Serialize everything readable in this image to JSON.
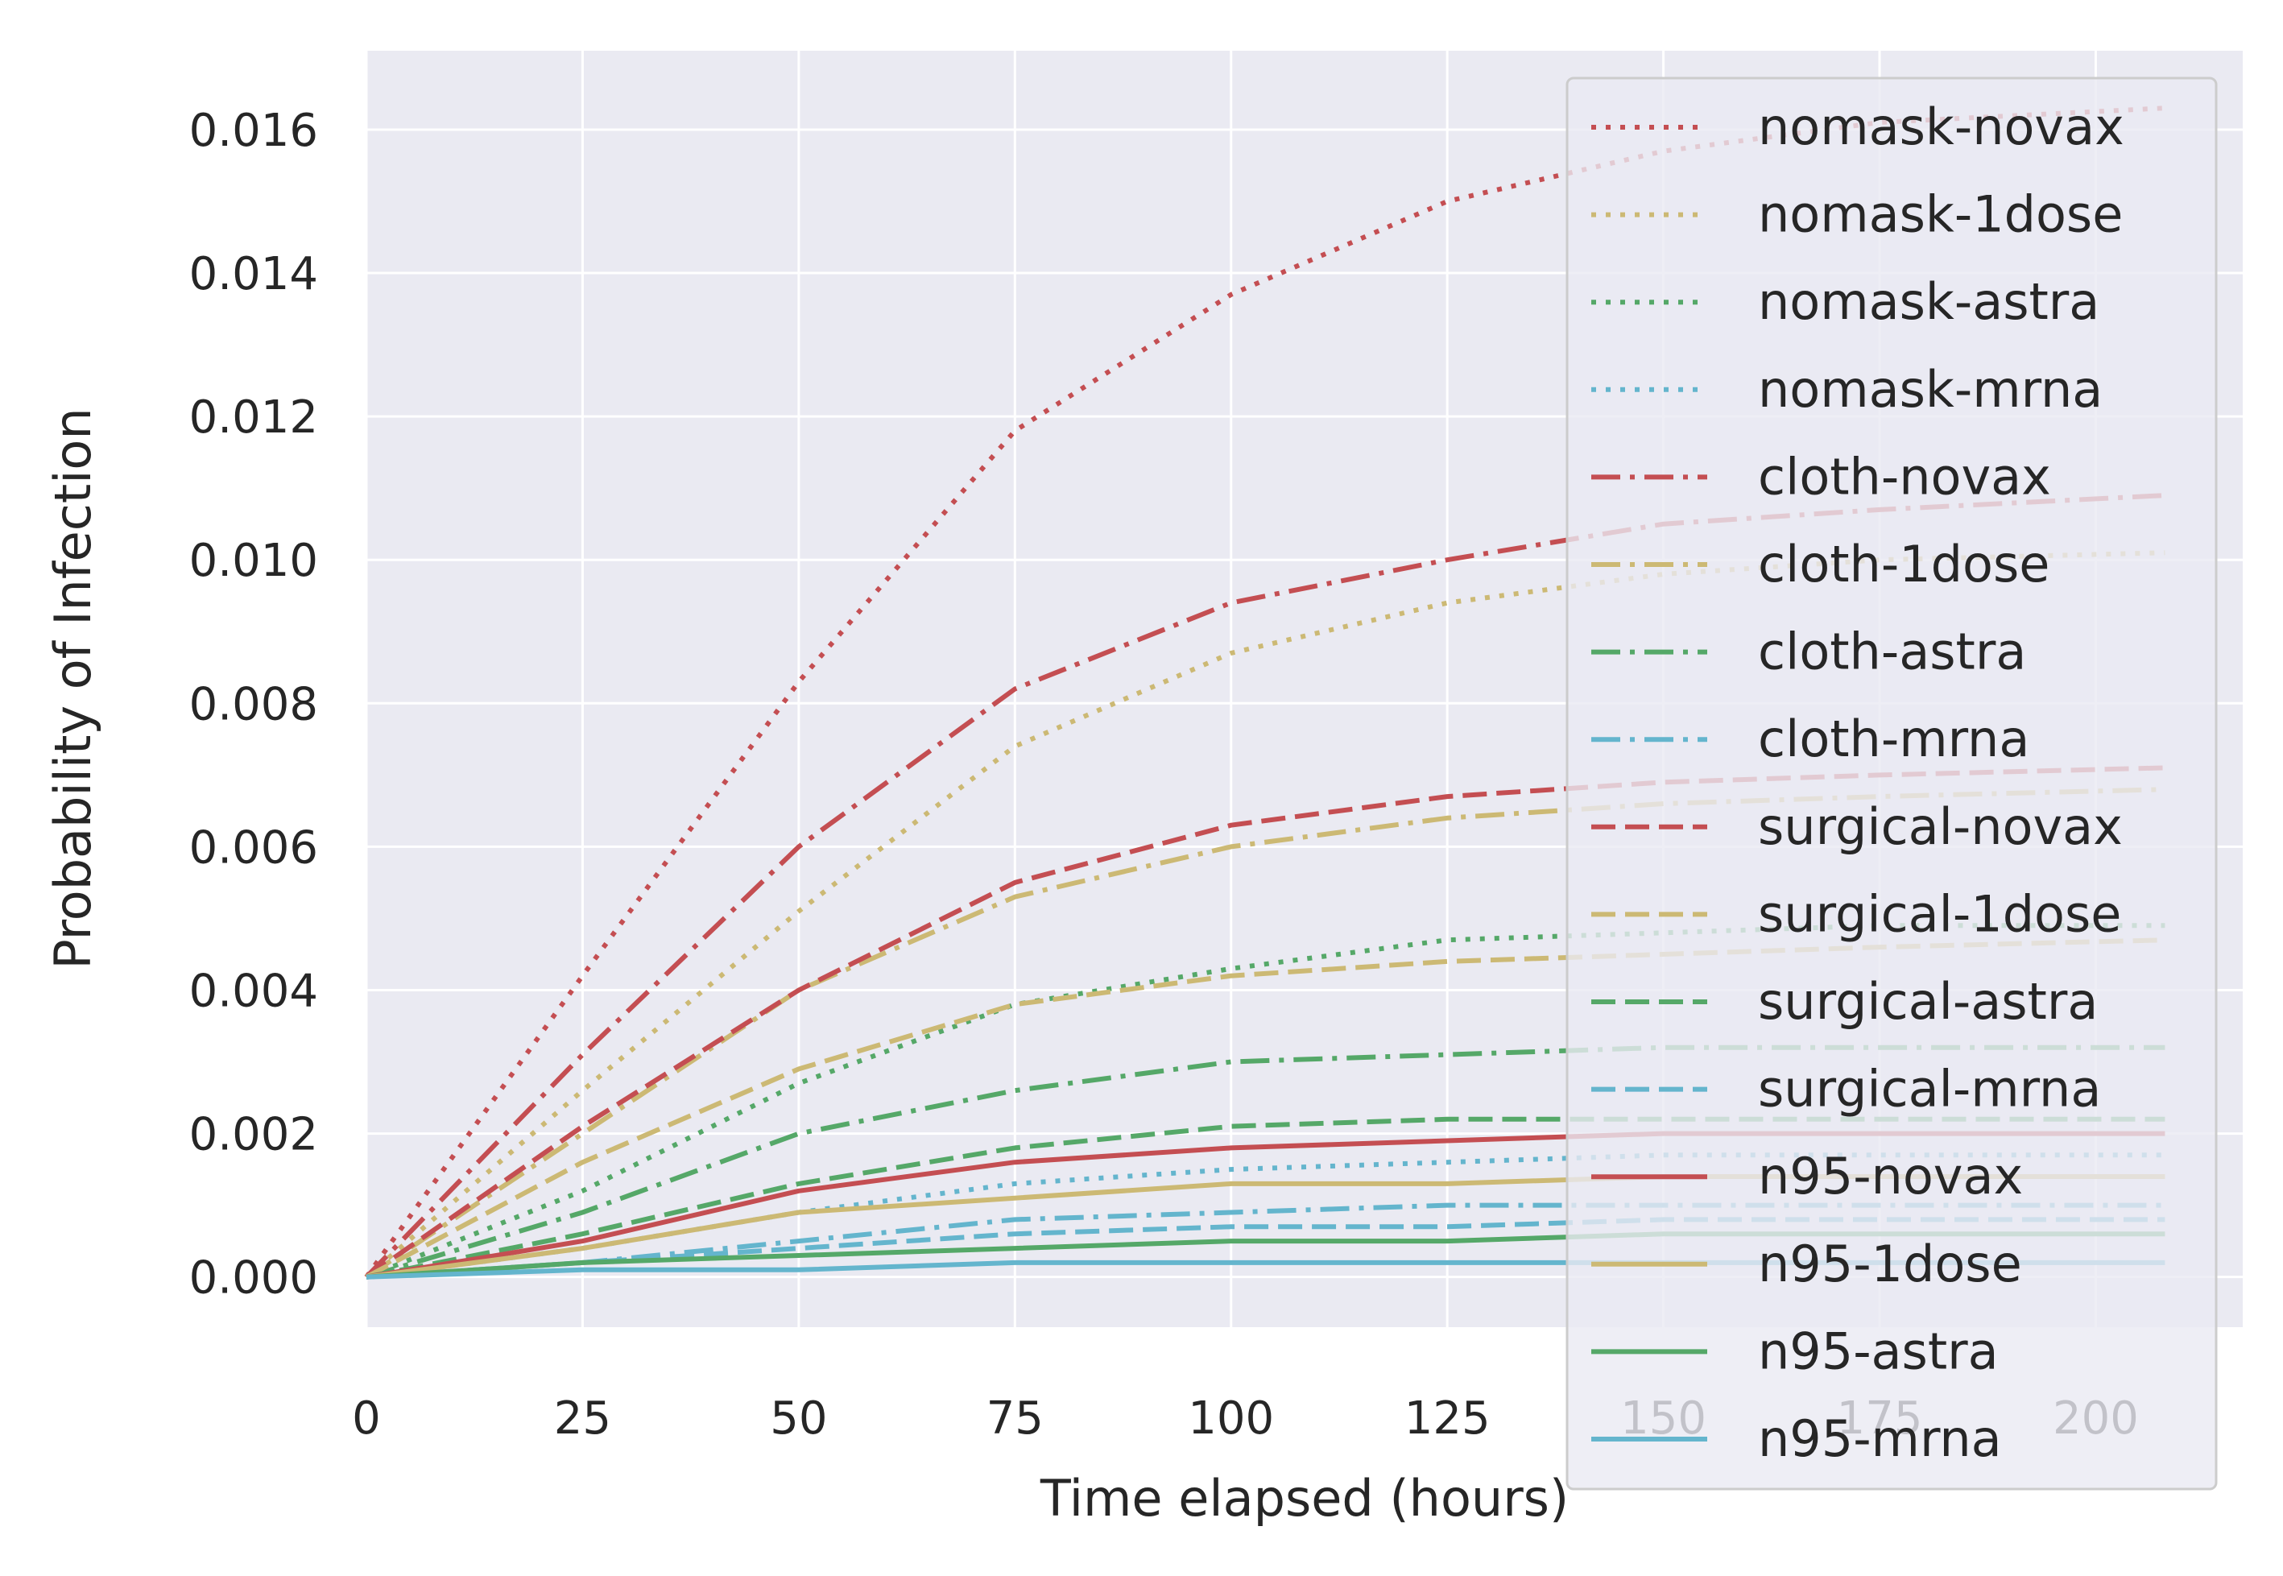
{
  "chart_data": {
    "type": "line",
    "xlabel": "Time elapsed (hours)",
    "ylabel": "Probability of Infection",
    "xlim": [
      0,
      217
    ],
    "ylim": [
      -0.0007,
      0.0171
    ],
    "xticks": [
      0,
      25,
      50,
      75,
      100,
      125,
      150,
      175,
      200
    ],
    "yticks": [
      0.0,
      0.002,
      0.004,
      0.006,
      0.008,
      0.01,
      0.012,
      0.014,
      0.016
    ],
    "xtick_labels": [
      "0",
      "25",
      "50",
      "75",
      "100",
      "125",
      "150",
      "175",
      "200"
    ],
    "ytick_labels": [
      "0.000",
      "0.002",
      "0.004",
      "0.006",
      "0.008",
      "0.010",
      "0.012",
      "0.014",
      "0.016"
    ],
    "grid": true,
    "legend_position": "right",
    "x": [
      0,
      25,
      50,
      75,
      100,
      125,
      150,
      175,
      208
    ],
    "series": [
      {
        "name": "nomask-novax",
        "style": "dotted",
        "color": "#c44e52",
        "values": [
          0,
          0.0042,
          0.0083,
          0.0118,
          0.0137,
          0.015,
          0.0157,
          0.0161,
          0.0163
        ]
      },
      {
        "name": "nomask-1dose",
        "style": "dotted",
        "color": "#ccb974",
        "values": [
          0,
          0.0026,
          0.0051,
          0.0074,
          0.0087,
          0.0094,
          0.0098,
          0.01,
          0.0101
        ]
      },
      {
        "name": "nomask-astra",
        "style": "dotted",
        "color": "#55a868",
        "values": [
          0,
          0.0012,
          0.0027,
          0.0038,
          0.0043,
          0.0047,
          0.0048,
          0.0049,
          0.0049
        ]
      },
      {
        "name": "nomask-mrna",
        "style": "dotted",
        "color": "#64b5cd",
        "values": [
          0,
          0.0004,
          0.0009,
          0.0013,
          0.0015,
          0.0016,
          0.0017,
          0.0017,
          0.0017
        ]
      },
      {
        "name": "cloth-novax",
        "style": "dashdot",
        "color": "#c44e52",
        "values": [
          0,
          0.0031,
          0.006,
          0.0082,
          0.0094,
          0.01,
          0.0105,
          0.0107,
          0.0109
        ]
      },
      {
        "name": "cloth-1dose",
        "style": "dashdot",
        "color": "#ccb974",
        "values": [
          0,
          0.002,
          0.004,
          0.0053,
          0.006,
          0.0064,
          0.0066,
          0.0067,
          0.0068
        ]
      },
      {
        "name": "cloth-astra",
        "style": "dashdot",
        "color": "#55a868",
        "values": [
          0,
          0.0009,
          0.002,
          0.0026,
          0.003,
          0.0031,
          0.0032,
          0.0032,
          0.0032
        ]
      },
      {
        "name": "cloth-mrna",
        "style": "dashdot",
        "color": "#64b5cd",
        "values": [
          0,
          0.0002,
          0.0005,
          0.0008,
          0.0009,
          0.001,
          0.001,
          0.001,
          0.001
        ]
      },
      {
        "name": "surgical-novax",
        "style": "dashed",
        "color": "#c44e52",
        "values": [
          0,
          0.0021,
          0.004,
          0.0055,
          0.0063,
          0.0067,
          0.0069,
          0.007,
          0.0071
        ]
      },
      {
        "name": "surgical-1dose",
        "style": "dashed",
        "color": "#ccb974",
        "values": [
          0,
          0.0016,
          0.0029,
          0.0038,
          0.0042,
          0.0044,
          0.0045,
          0.0046,
          0.0047
        ]
      },
      {
        "name": "surgical-astra",
        "style": "dashed",
        "color": "#55a868",
        "values": [
          0,
          0.0006,
          0.0013,
          0.0018,
          0.0021,
          0.0022,
          0.0022,
          0.0022,
          0.0022
        ]
      },
      {
        "name": "surgical-mrna",
        "style": "dashed",
        "color": "#64b5cd",
        "values": [
          0,
          0.0002,
          0.0004,
          0.0006,
          0.0007,
          0.0007,
          0.0008,
          0.0008,
          0.0008
        ]
      },
      {
        "name": "n95-novax",
        "style": "solid",
        "color": "#c44e52",
        "values": [
          0,
          0.0005,
          0.0012,
          0.0016,
          0.0018,
          0.0019,
          0.002,
          0.002,
          0.002
        ]
      },
      {
        "name": "n95-1dose",
        "style": "solid",
        "color": "#ccb974",
        "values": [
          0,
          0.0004,
          0.0009,
          0.0011,
          0.0013,
          0.0013,
          0.0014,
          0.0014,
          0.0014
        ]
      },
      {
        "name": "n95-astra",
        "style": "solid",
        "color": "#55a868",
        "values": [
          0,
          0.0002,
          0.0003,
          0.0004,
          0.0005,
          0.0005,
          0.0006,
          0.0006,
          0.0006
        ]
      },
      {
        "name": "n95-mrna",
        "style": "solid",
        "color": "#64b5cd",
        "values": [
          0,
          0.0001,
          0.0001,
          0.0002,
          0.0002,
          0.0002,
          0.0002,
          0.0002,
          0.0002
        ]
      }
    ]
  }
}
